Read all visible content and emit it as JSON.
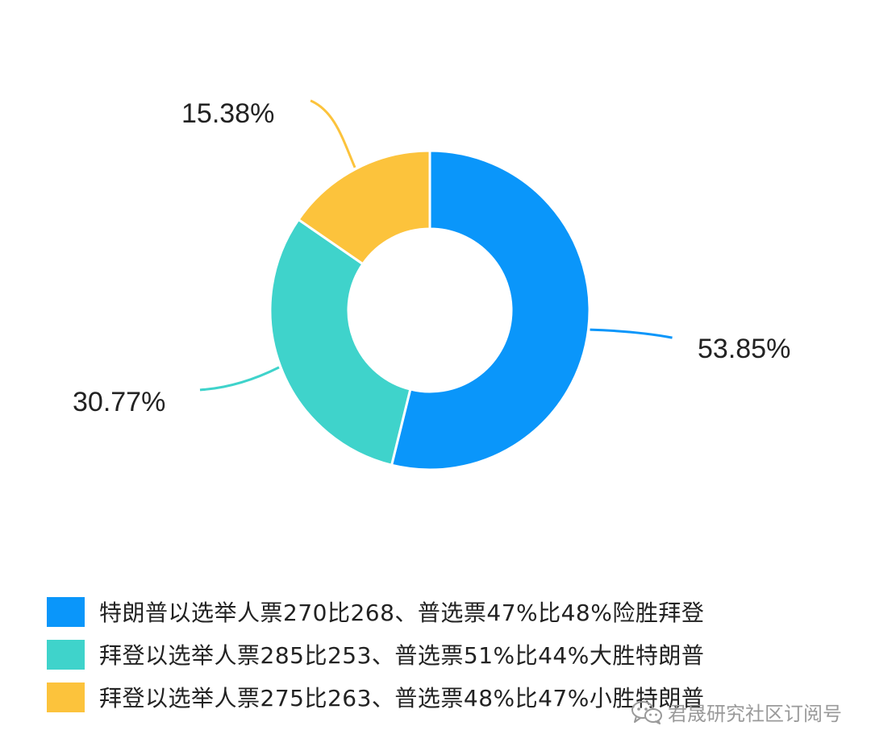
{
  "chart_data": {
    "type": "pie",
    "donut": true,
    "categories": [
      "特朗普以选举人票270比268、普选票47%比48%险胜拜登",
      "拜登以选举人票285比253、普选票51%比44%大胜特朗普",
      "拜登以选举人票275比263、普选票48%比47%小胜特朗普"
    ],
    "values": [
      53.85,
      30.77,
      15.38
    ],
    "value_labels": [
      "53.85%",
      "30.77%",
      "15.38%"
    ],
    "colors": [
      "#0a96fa",
      "#3fd3cb",
      "#fcc33c"
    ],
    "legend_position": "bottom"
  },
  "watermark": {
    "icon": "wechat-icon",
    "text": "君晟研究社区订阅号"
  }
}
